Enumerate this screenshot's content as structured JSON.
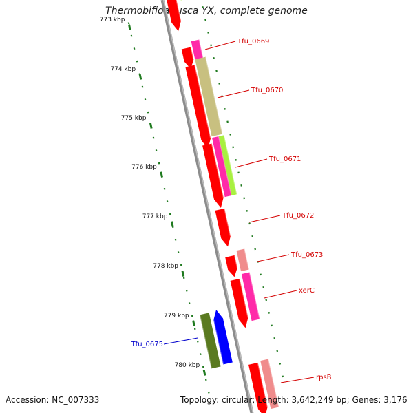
{
  "title": "Thermobifida fusca YX, complete genome",
  "footer": {
    "accession": "Accession: NC_007333",
    "summary": "Topology: circular; Length: 3,642,249 bp; Genes: 3,176"
  },
  "colors": {
    "backbone": "#8c8c8c",
    "ticks": "#1f7a1f",
    "forward_gene": "#ff0000",
    "other_feature_magenta": "#ff2aa8",
    "other_feature_pink": "#f08c8c",
    "other_feature_olive": "#c8c080",
    "other_feature_lime": "#a8f040",
    "reverse_gene": "#0000ff",
    "reverse_feature": "#5a7a20",
    "label_red": "#d40000",
    "label_blue": "#0000cc"
  },
  "kbp_labels": [
    "773 kbp",
    "774 kbp",
    "775 kbp",
    "776 kbp",
    "777 kbp",
    "778 kbp",
    "779 kbp",
    "780 kbp"
  ],
  "gene_labels": [
    {
      "id": "Tfu_0669",
      "text": "Tfu_0669",
      "color": "label_red"
    },
    {
      "id": "Tfu_0670",
      "text": "Tfu_0670",
      "color": "label_red"
    },
    {
      "id": "Tfu_0671",
      "text": "Tfu_0671",
      "color": "label_red"
    },
    {
      "id": "Tfu_0672",
      "text": "Tfu_0672",
      "color": "label_red"
    },
    {
      "id": "Tfu_0673",
      "text": "Tfu_0673",
      "color": "label_red"
    },
    {
      "id": "xerC",
      "text": "xerC",
      "color": "label_red"
    },
    {
      "id": "rpsB",
      "text": "rpsB",
      "color": "label_red"
    },
    {
      "id": "Tfu_0675",
      "text": "Tfu_0675",
      "color": "label_blue"
    }
  ]
}
